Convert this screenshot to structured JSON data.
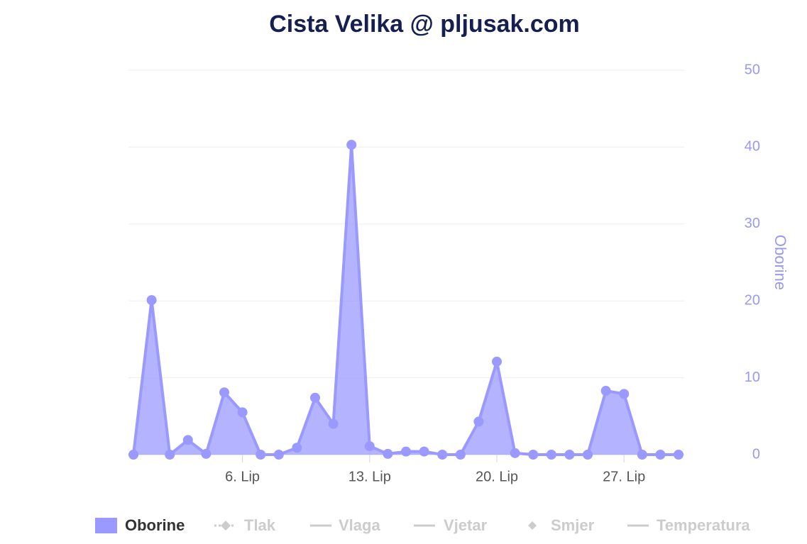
{
  "chart_data": {
    "type": "area",
    "title": "Cista Velika @ pljusak.com",
    "categories": [
      null,
      null,
      null,
      null,
      null,
      null,
      "6. Lip",
      null,
      null,
      null,
      null,
      null,
      null,
      "13. Lip",
      null,
      null,
      null,
      null,
      null,
      null,
      "20. Lip",
      null,
      null,
      null,
      null,
      null,
      null,
      "27. Lip",
      null,
      null,
      null
    ],
    "series": [
      {
        "name": "Oborine",
        "color": "#9999ff",
        "axis": "y2",
        "values": [
          0,
          20.1,
          0,
          1.9,
          0.1,
          8.1,
          5.5,
          0,
          0,
          0.9,
          7.4,
          4.0,
          40.3,
          1.1,
          0.1,
          0.4,
          0.4,
          0,
          0,
          4.3,
          12.1,
          0.2,
          0,
          0,
          0,
          0,
          8.3,
          7.9,
          0,
          0,
          0
        ]
      },
      {
        "name": "Tlak",
        "color": "#cccccc",
        "visible": false
      },
      {
        "name": "Vlaga",
        "color": "#cccccc",
        "visible": false
      },
      {
        "name": "Vjetar",
        "color": "#cccccc",
        "visible": false
      },
      {
        "name": "Smjer",
        "color": "#cccccc",
        "visible": false
      },
      {
        "name": "Temperatura",
        "color": "#cccccc",
        "visible": false
      }
    ],
    "y2_label": "Oborine",
    "y2lim": [
      0,
      50
    ],
    "y2ticks": [
      0,
      10,
      20,
      30,
      40,
      50
    ],
    "grid": true
  }
}
